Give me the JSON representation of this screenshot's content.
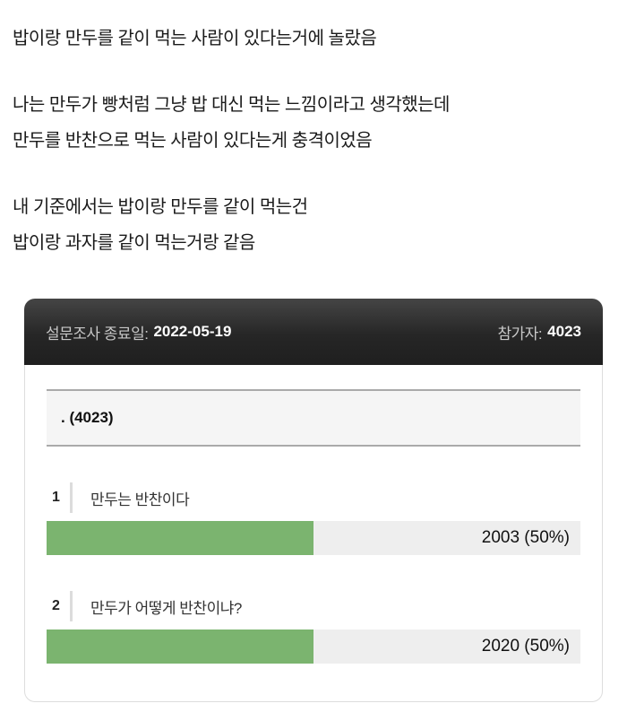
{
  "post": {
    "paragraphs": [
      {
        "lines": [
          "밥이랑 만두를 같이 먹는 사람이 있다는거에 놀랐음"
        ]
      },
      {
        "lines": [
          "나는 만두가 빵처럼 그냥 밥 대신 먹는 느낌이라고 생각했는데",
          "만두를 반찬으로 먹는 사람이 있다는게 충격이었음"
        ]
      },
      {
        "lines": [
          "내 기준에서는 밥이랑 만두를 같이 먹는건",
          "밥이랑 과자를 같이 먹는거랑 같음"
        ]
      }
    ]
  },
  "poll": {
    "header": {
      "end_date_label": "설문조사 종료일:",
      "end_date": "2022-05-19",
      "participants_label": "참가자:",
      "participants": "4023"
    },
    "question": ". (4023)",
    "options": [
      {
        "rank": "1",
        "label": "만두는 반찬이다",
        "value_text": "2003 (50%)",
        "votes": 2003,
        "percent": 50
      },
      {
        "rank": "2",
        "label": "만두가 어떻게 반찬이냐?",
        "value_text": "2020 (50%)",
        "votes": 2020,
        "percent": 50
      }
    ],
    "colors": {
      "bar_fill": "#7bb46f",
      "bar_background": "#eeeeee",
      "header_background": "#262626",
      "question_background": "#f5f5f5"
    }
  }
}
